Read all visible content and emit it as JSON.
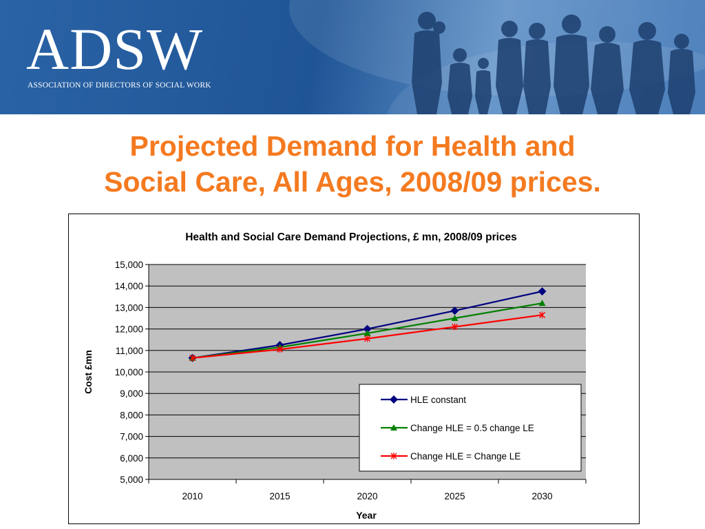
{
  "header": {
    "logo_text": "ADSW",
    "logo_subtitle": "ASSOCIATION OF DIRECTORS OF SOCIAL WORK"
  },
  "slide": {
    "title_line1": "Projected Demand for Health and",
    "title_line2": "Social Care, All Ages, 2008/09 prices."
  },
  "colors": {
    "title": "#f47a20",
    "banner": "#2a63a6",
    "plot_background": "#c0c0c0"
  },
  "icons": [
    "family-silhouette-image"
  ],
  "chart_data": {
    "type": "line",
    "title": "Health and Social Care Demand Projections, £ mn, 2008/09 prices",
    "xlabel": "Year",
    "ylabel": "Cost £mn",
    "categories": [
      "2010",
      "2015",
      "2020",
      "2025",
      "2030"
    ],
    "ylim": [
      5000,
      15000
    ],
    "yticks": [
      5000,
      6000,
      7000,
      8000,
      9000,
      10000,
      11000,
      12000,
      13000,
      14000,
      15000
    ],
    "ytick_labels": [
      "5,000",
      "6,000",
      "7,000",
      "8,000",
      "9,000",
      "10,000",
      "11,000",
      "12,000",
      "13,000",
      "14,000",
      "15,000"
    ],
    "grid": true,
    "legend_position": "lower-right",
    "series": [
      {
        "name": "HLE constant",
        "color": "#000080",
        "marker": "diamond",
        "values": [
          10650,
          11250,
          12000,
          12850,
          13750
        ]
      },
      {
        "name": "Change HLE = 0.5 change LE",
        "color": "#008000",
        "marker": "triangle",
        "values": [
          10650,
          11150,
          11800,
          12500,
          13200
        ]
      },
      {
        "name": "Change HLE = Change LE",
        "color": "#ff0000",
        "marker": "cross",
        "values": [
          10650,
          11050,
          11550,
          12100,
          12650
        ]
      }
    ]
  }
}
